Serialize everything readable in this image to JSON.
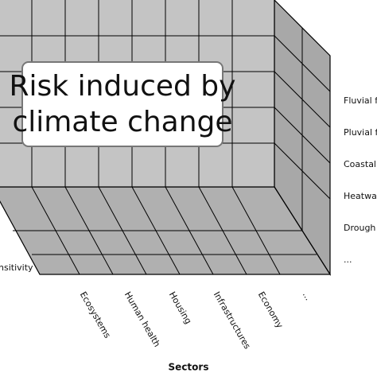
{
  "title": [
    "Risk induced by",
    "climate change"
  ],
  "hazards": [
    "Fluvial f",
    "Pluvial f",
    "Coastal",
    "Heatwav",
    "Drough",
    "..."
  ],
  "sectors": [
    "Ecosystems",
    "Human health",
    "Housing",
    "Infrastructures",
    "Economy",
    "..."
  ],
  "sectors_axis": "Sectors",
  "sensitivity_axis": "nsitivity"
}
